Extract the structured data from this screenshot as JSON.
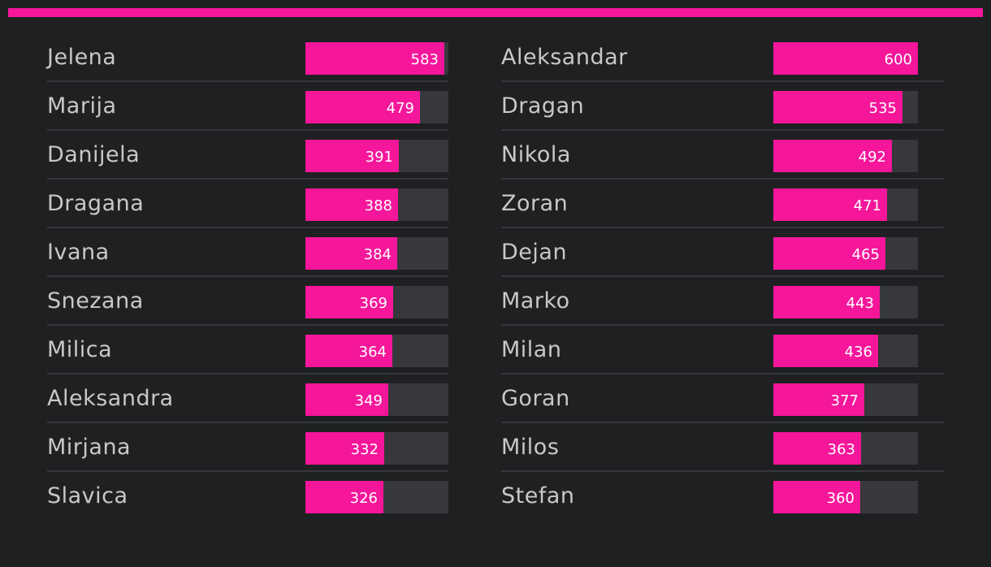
{
  "colors": {
    "accent": "#f5169a",
    "background": "#1f2022",
    "track": "#37383b",
    "name_text": "#c8c8c8",
    "value_text": "#ffffff"
  },
  "chart_data": [
    {
      "type": "bar",
      "orientation": "horizontal",
      "xlim": [
        0,
        600
      ],
      "categories": [
        "Jelena",
        "Marija",
        "Danijela",
        "Dragana",
        "Ivana",
        "Snezana",
        "Milica",
        "Aleksandra",
        "Mirjana",
        "Slavica"
      ],
      "values": [
        583,
        479,
        391,
        388,
        384,
        369,
        364,
        349,
        332,
        326
      ]
    },
    {
      "type": "bar",
      "orientation": "horizontal",
      "xlim": [
        0,
        600
      ],
      "categories": [
        "Aleksandar",
        "Dragan",
        "Nikola",
        "Zoran",
        "Dejan",
        "Marko",
        "Milan",
        "Goran",
        "Milos",
        "Stefan"
      ],
      "values": [
        600,
        535,
        492,
        471,
        465,
        443,
        436,
        377,
        363,
        360
      ]
    }
  ]
}
